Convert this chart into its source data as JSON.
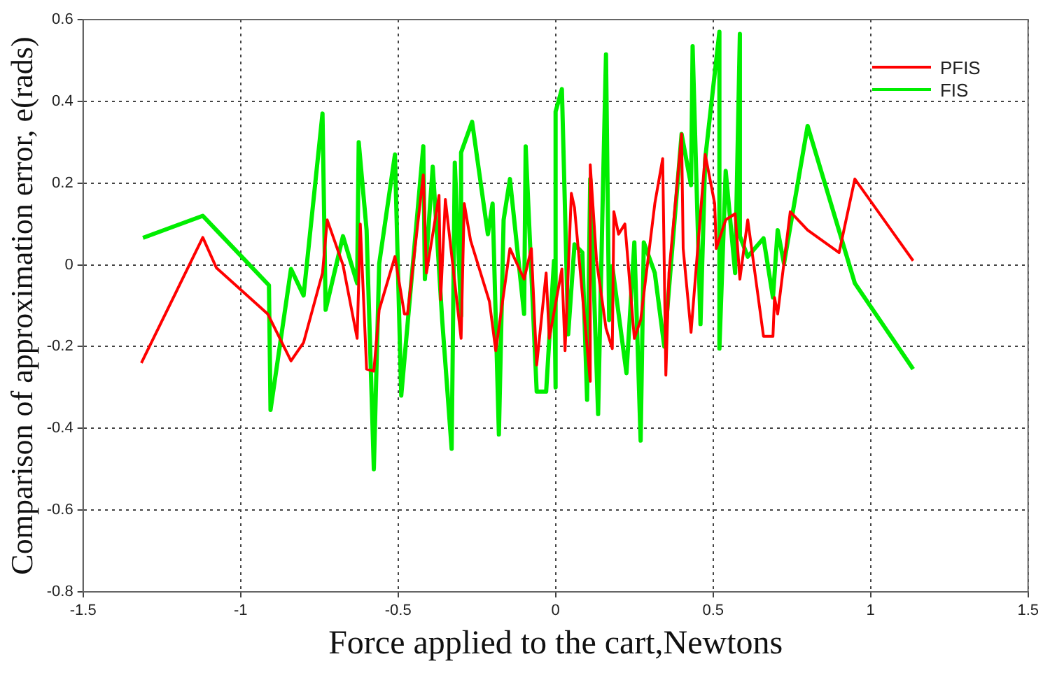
{
  "chart_data": {
    "type": "line",
    "xlabel": "Force applied to the cart,Newtons",
    "ylabel": "Comparison of approximation error, e(rads)",
    "xlim": [
      -1.5,
      1.5
    ],
    "xticks": [
      -1.5,
      -1,
      -0.5,
      0,
      0.5,
      1,
      1.5
    ],
    "ylim": [
      -0.8,
      0.6
    ],
    "yticks": [
      -0.8,
      -0.6,
      -0.4,
      -0.2,
      0,
      0.2,
      0.4,
      0.6
    ],
    "grid": true,
    "legend": "top right",
    "marker": "none",
    "line_style": "solid",
    "series": [
      {
        "name": "PFIS",
        "color": "#ff0000",
        "x": [
          -1.315,
          -1.12,
          -1.077,
          -0.914,
          -0.84,
          -0.8,
          -0.74,
          -0.725,
          -0.675,
          -0.63,
          -0.62,
          -0.6,
          -0.577,
          -0.56,
          -0.51,
          -0.48,
          -0.47,
          -0.42,
          -0.41,
          -0.37,
          -0.365,
          -0.35,
          -0.3,
          -0.29,
          -0.27,
          -0.21,
          -0.19,
          -0.145,
          -0.1,
          -0.077,
          -0.06,
          -0.03,
          -0.02,
          0.02,
          0.03,
          0.05,
          0.06,
          0.11,
          0.11,
          0.13,
          0.16,
          0.18,
          0.185,
          0.2,
          0.22,
          0.25,
          0.27,
          0.315,
          0.34,
          0.35,
          0.36,
          0.4,
          0.405,
          0.43,
          0.475,
          0.505,
          0.51,
          0.54,
          0.57,
          0.585,
          0.61,
          0.66,
          0.69,
          0.695,
          0.705,
          0.745,
          0.8,
          0.9,
          0.95,
          1.135
        ],
        "values": [
          -0.24,
          0.067,
          -0.007,
          -0.12,
          -0.235,
          -0.19,
          -0.02,
          0.11,
          0,
          -0.18,
          0.1,
          -0.255,
          -0.26,
          -0.11,
          0.02,
          -0.12,
          -0.12,
          0.22,
          -0.02,
          0.17,
          -0.085,
          0.16,
          -0.18,
          0.15,
          0.06,
          -0.09,
          -0.21,
          0.04,
          -0.035,
          0.04,
          -0.245,
          -0.02,
          -0.18,
          -0.01,
          -0.21,
          0.175,
          0.14,
          -0.285,
          0.245,
          0.01,
          -0.155,
          -0.205,
          0.13,
          0.075,
          0.1,
          -0.18,
          -0.135,
          0.15,
          0.26,
          -0.27,
          -0.02,
          0.32,
          0.04,
          -0.165,
          0.27,
          0.15,
          0.04,
          0.11,
          0.125,
          -0.035,
          0.11,
          -0.175,
          -0.175,
          -0.08,
          -0.12,
          0.13,
          0.085,
          0.03,
          0.21,
          0.01
        ]
      },
      {
        "name": "FIS",
        "color": "#00ee00",
        "x": [
          -1.31,
          -1.12,
          -1.077,
          -0.91,
          -0.905,
          -0.84,
          -0.8,
          -0.74,
          -0.73,
          -0.675,
          -0.63,
          -0.625,
          -0.6,
          -0.577,
          -0.56,
          -0.51,
          -0.49,
          -0.42,
          -0.415,
          -0.39,
          -0.36,
          -0.33,
          -0.32,
          -0.3,
          -0.3,
          -0.265,
          -0.215,
          -0.2,
          -0.18,
          -0.165,
          -0.145,
          -0.1,
          -0.095,
          -0.06,
          -0.03,
          -0.005,
          0,
          0,
          0.02,
          0.04,
          0.06,
          0.085,
          0.1,
          0.11,
          0.135,
          0.15,
          0.16,
          0.17,
          0.18,
          0.225,
          0.25,
          0.27,
          0.28,
          0.315,
          0.345,
          0.4,
          0.43,
          0.435,
          0.46,
          0.475,
          0.52,
          0.52,
          0.54,
          0.57,
          0.585,
          0.585,
          0.61,
          0.66,
          0.69,
          0.705,
          0.725,
          0.8,
          0.95,
          1.135
        ],
        "values": [
          0.066,
          0.12,
          0.085,
          -0.05,
          -0.355,
          -0.01,
          -0.075,
          0.37,
          -0.11,
          0.07,
          -0.045,
          0.3,
          0.085,
          -0.5,
          0.003,
          0.27,
          -0.32,
          0.29,
          -0.035,
          0.24,
          -0.135,
          -0.45,
          0.25,
          -0.125,
          0.275,
          0.35,
          0.075,
          0.15,
          -0.415,
          0.11,
          0.21,
          -0.12,
          0.29,
          -0.31,
          -0.31,
          0.01,
          -0.3,
          0.375,
          0.43,
          -0.17,
          0.05,
          0.03,
          -0.33,
          0.21,
          -0.365,
          0.175,
          0.515,
          -0.135,
          -0.003,
          -0.265,
          0.055,
          -0.43,
          0.055,
          -0.02,
          -0.2,
          0.32,
          0.195,
          0.535,
          -0.145,
          0.26,
          0.57,
          -0.205,
          0.23,
          -0.02,
          0.565,
          0.07,
          0.02,
          0.065,
          -0.08,
          0.085,
          0.003,
          0.34,
          -0.045,
          -0.255
        ]
      }
    ]
  }
}
